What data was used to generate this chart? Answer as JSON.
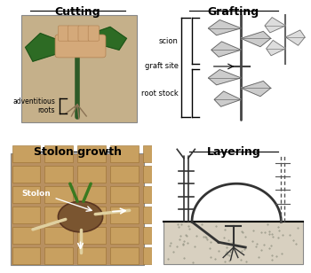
{
  "title_cutting": "Cutting",
  "title_grafting": "Grafting",
  "title_stolon": "Stolon growth",
  "title_layering": "Layering",
  "label_adventitious": "adventitious\nroots",
  "label_scion": "scion",
  "label_graft_site": "graft site",
  "label_root_stock": "root stock",
  "label_stolon": "Stolon",
  "bg_color": "#ffffff",
  "title_fontsize": 9,
  "label_fontsize": 7,
  "border_color": "#333333",
  "photo_cutting_color": "#c5b08a",
  "photo_stolon_color": "#b89060"
}
